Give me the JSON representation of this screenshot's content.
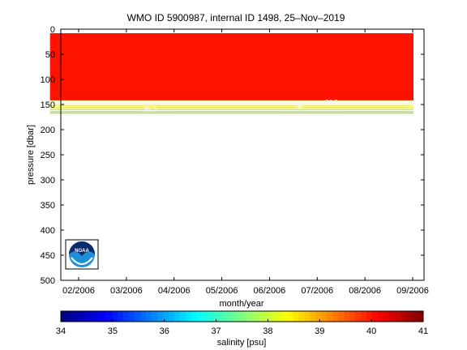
{
  "chart_data": {
    "type": "heatmap",
    "title": "WMO ID 5900987, internal ID 1498, 25–Nov–2019",
    "xlabel": "month/year",
    "ylabel": "pressure [dbar]",
    "x_ticks": [
      "02/2006",
      "03/2006",
      "04/2006",
      "05/2006",
      "06/2006",
      "07/2006",
      "08/2006",
      "09/2006"
    ],
    "x_range": [
      "01/2006 (mid)",
      "09/2006"
    ],
    "y_ticks": [
      0,
      50,
      100,
      150,
      200,
      250,
      300,
      350,
      400,
      450,
      500
    ],
    "ylim": [
      0,
      500
    ],
    "y_reversed": true,
    "grid": false,
    "data_extent": {
      "x": [
        "01/2006 (late)",
        "09/2006"
      ],
      "pressure": [
        8,
        168
      ]
    },
    "fill_value": 40,
    "contours": [
      {
        "pressure": 143,
        "color": "#f6f2a8"
      },
      {
        "pressure": 148,
        "color": "#fff2c0"
      },
      {
        "pressure": 152,
        "color": "#f2ee6c"
      },
      {
        "pressure": 156,
        "color": "#e6ea58"
      },
      {
        "pressure": 160,
        "color": "#d8e868"
      },
      {
        "pressure": 164,
        "color": "#c4e080"
      },
      {
        "pressure": 167,
        "color": "#b8dc78"
      }
    ],
    "contour_labels": [
      {
        "text": "36.5",
        "x_month": 7.3,
        "pressure": 150
      },
      {
        "text": "36",
        "x_month": 6.6,
        "pressure": 158
      },
      {
        "text": "35.5",
        "x_month": 3.5,
        "pressure": 164
      }
    ],
    "colorbar": {
      "label": "salinity [psu]",
      "min": 34,
      "max": 41,
      "ticks": [
        34,
        35,
        36,
        37,
        38,
        39,
        40,
        41
      ],
      "colormap": "jet"
    },
    "logo": "NOAA"
  }
}
